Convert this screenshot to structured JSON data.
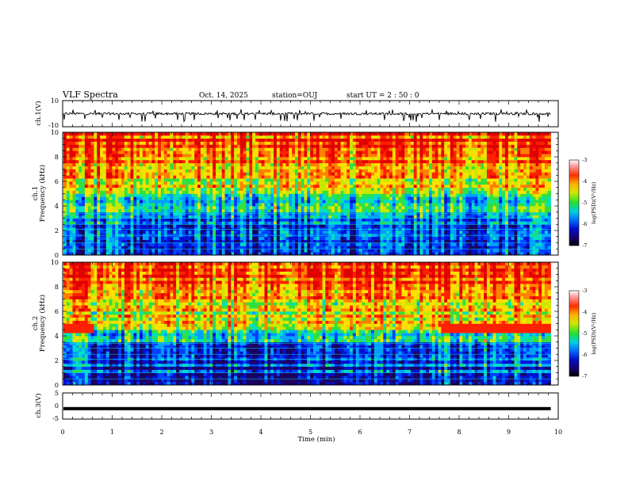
{
  "header": {
    "title": "VLF Spectra",
    "date": "Oct. 14, 2025",
    "station": "station=OUJ",
    "start_ut": "start  UT =   2  : 50 : 0"
  },
  "chart_data": [
    {
      "type": "line",
      "name": "ch1-waveform",
      "ylabel": "ch.1(V)",
      "ylim": [
        -10,
        10
      ],
      "yticks": [
        "10",
        "-10"
      ],
      "xlim": [
        0,
        10
      ],
      "data_end_min": 9.85,
      "baseline_v": 0
    },
    {
      "type": "heatmap",
      "name": "ch1-spectrogram",
      "ylabel": "ch.1\nFrequency (kHz)",
      "ylim": [
        0,
        10
      ],
      "yticks": [
        "0",
        "2",
        "4",
        "6",
        "8",
        "10"
      ],
      "xlim": [
        0,
        10
      ],
      "data_end_min": 9.85,
      "colorbar": {
        "label": "log(PSD)(V²/Hz)",
        "range": [
          -7,
          -3
        ],
        "ticks": [
          "-7",
          "-6",
          "-5",
          "-4",
          "-3"
        ]
      }
    },
    {
      "type": "heatmap",
      "name": "ch2-spectrogram",
      "ylabel": "ch.2\nFrequency (kHz)",
      "ylim": [
        0,
        10
      ],
      "yticks": [
        "0",
        "2",
        "4",
        "6",
        "8",
        "10"
      ],
      "xlim": [
        0,
        10
      ],
      "data_end_min": 9.85,
      "colorbar": {
        "label": "log(PSD)(V²/Hz)",
        "range": [
          -7,
          -3
        ],
        "ticks": [
          "-7",
          "-6",
          "-5",
          "-4",
          "-3"
        ]
      }
    },
    {
      "type": "line",
      "name": "ch3-waveform",
      "ylabel": "ch.3(V)",
      "ylim": [
        -5,
        5
      ],
      "yticks": [
        "5",
        "0",
        "-5"
      ],
      "xlim": [
        0,
        10
      ],
      "data_end_min": 9.85,
      "baseline_v": -1,
      "xlabel": "Time  (min)",
      "xticks": [
        "0",
        "1",
        "2",
        "3",
        "4",
        "5",
        "6",
        "7",
        "8",
        "9",
        "10"
      ]
    }
  ],
  "colors": {
    "colormap": [
      "#1a0060",
      "#0010d0",
      "#0040ff",
      "#00a0ff",
      "#00e0c0",
      "#30e040",
      "#c8e800",
      "#ffe000",
      "#ff8000",
      "#ff2000",
      "#e00000"
    ]
  }
}
